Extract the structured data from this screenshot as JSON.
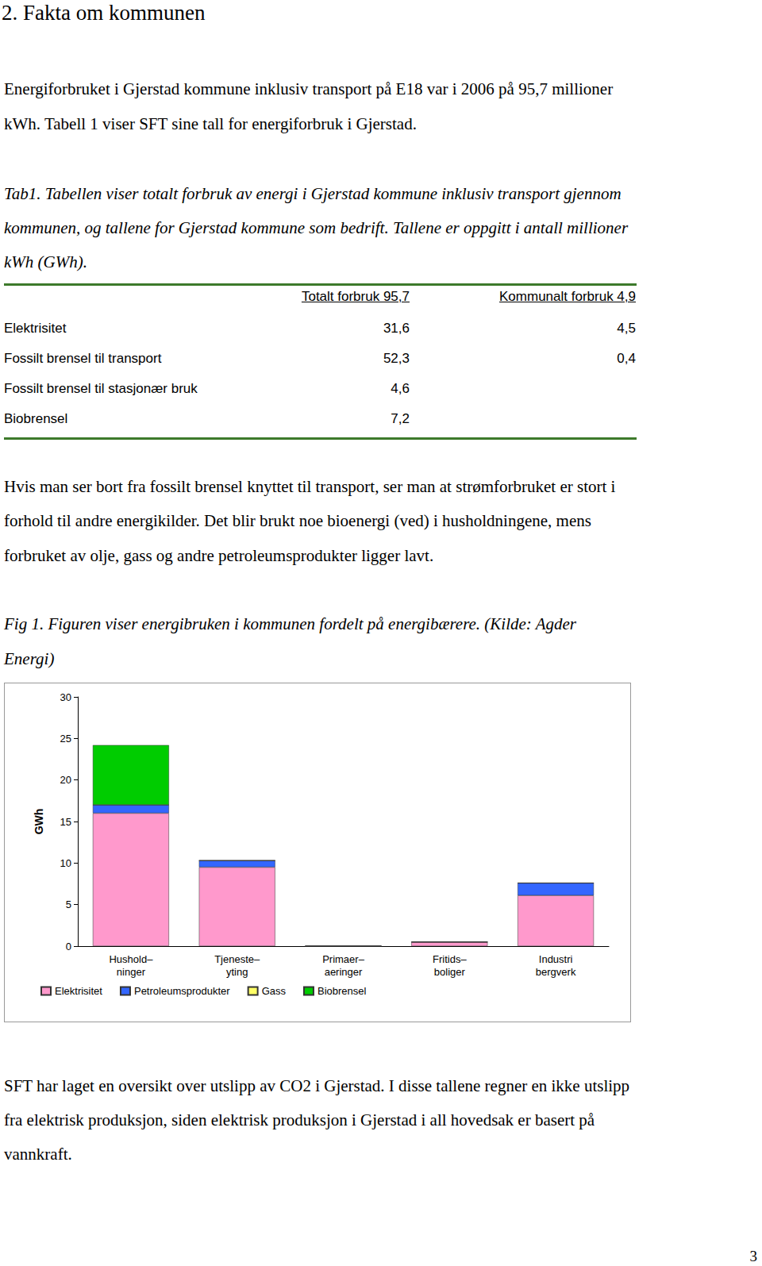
{
  "document": {
    "heading": "2. Fakta om kommunen",
    "intro": [
      "Energiforbruket i Gjerstad kommune inklusiv transport på E18 var i 2006 på 95,7 millioner",
      "kWh. Tabell 1 viser SFT sine tall for energiforbruk i Gjerstad."
    ],
    "table_caption": [
      "Tab1. Tabellen viser totalt forbruk av energi i Gjerstad kommune inklusiv transport gjennom",
      "kommunen, og tallene for Gjerstad kommune som bedrift. Tallene er oppgitt i antall millioner",
      "kWh (GWh)."
    ],
    "table": {
      "columns": [
        "Totalt forbruk 95,7",
        "Kommunalt forbruk 4,9"
      ],
      "rows": [
        [
          "Elektrisitet",
          "31,6",
          "4,5"
        ],
        [
          "Fossilt brensel til transport",
          "52,3",
          "0,4"
        ],
        [
          "Fossilt brensel til stasjonær bruk",
          "4,6",
          null
        ],
        [
          "Biobrensel",
          "7,2",
          null
        ]
      ]
    },
    "paragraph": [
      "Hvis man ser bort fra fossilt brensel knyttet til transport, ser man at strømforbruket er stort i",
      "forhold til andre energikilder. Det blir brukt noe bioenergi (ved) i husholdningene, mens",
      "forbruket av olje, gass og andre petroleumsprodukter ligger lavt."
    ],
    "figure_caption": [
      "Fig 1. Figuren viser energibruken i kommunen fordelt på energibærere. (Kilde: Agder",
      "Energi)"
    ],
    "closing": [
      "SFT har laget en oversikt over utslipp av CO2 i Gjerstad. I disse tallene regner en ikke utslipp",
      "fra elektrisk produksjon, siden elektrisk produksjon i Gjerstad i all hovedsak er basert på",
      "vannkraft."
    ],
    "page_number": "3"
  },
  "chart_data": {
    "type": "bar",
    "y_label": "GWh",
    "categories": [
      "Hushold–\nninger",
      "Tjeneste–\nyting",
      "Primaer–\naeringer",
      "Fritids–\nboliger",
      "Industri\nbergverk"
    ],
    "series": [
      {
        "name": "Elektrisitet",
        "color": "#ff99cc",
        "values": [
          16,
          9.5,
          0,
          0.5,
          6.1
        ]
      },
      {
        "name": "Petroleumsprodukter",
        "color": "#3366ff",
        "values": [
          1,
          0.8,
          0,
          0,
          1.5
        ]
      },
      {
        "name": "Gass",
        "color": "#ffff66",
        "values": [
          0,
          0,
          0,
          0,
          0
        ]
      },
      {
        "name": "Biobrensel",
        "color": "#00cc00",
        "values": [
          7.2,
          0,
          0,
          0,
          0
        ]
      }
    ],
    "stacked": true,
    "ylim": [
      0,
      30
    ],
    "yticks": [
      0,
      5,
      10,
      15,
      20,
      25,
      30
    ],
    "grid": false,
    "legend": "bottom"
  }
}
